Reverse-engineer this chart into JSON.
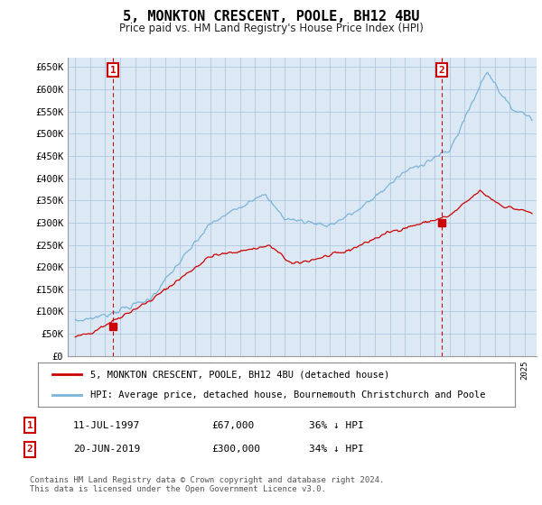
{
  "title": "5, MONKTON CRESCENT, POOLE, BH12 4BU",
  "subtitle": "Price paid vs. HM Land Registry's House Price Index (HPI)",
  "ylim": [
    0,
    670000
  ],
  "yticks": [
    0,
    50000,
    100000,
    150000,
    200000,
    250000,
    300000,
    350000,
    400000,
    450000,
    500000,
    550000,
    600000,
    650000
  ],
  "ytick_labels": [
    "£0",
    "£50K",
    "£100K",
    "£150K",
    "£200K",
    "£250K",
    "£300K",
    "£350K",
    "£400K",
    "£450K",
    "£500K",
    "£550K",
    "£600K",
    "£650K"
  ],
  "hpi_color": "#7ab4d8",
  "sale_color": "#cc0000",
  "bg_color": "#dce9f5",
  "grid_color": "#b0c8e0",
  "outer_bg": "#ffffff",
  "sale1_x": 1997.53,
  "sale1_y": 67000,
  "sale2_x": 2019.47,
  "sale2_y": 300000,
  "legend_entry1": "5, MONKTON CRESCENT, POOLE, BH12 4BU (detached house)",
  "legend_entry2": "HPI: Average price, detached house, Bournemouth Christchurch and Poole",
  "table_row1": [
    "1",
    "11-JUL-1997",
    "£67,000",
    "36% ↓ HPI"
  ],
  "table_row2": [
    "2",
    "20-JUN-2019",
    "£300,000",
    "34% ↓ HPI"
  ],
  "footnote": "Contains HM Land Registry data © Crown copyright and database right 2024.\nThis data is licensed under the Open Government Licence v3.0.",
  "xlim_start": 1994.5,
  "xlim_end": 2025.8
}
